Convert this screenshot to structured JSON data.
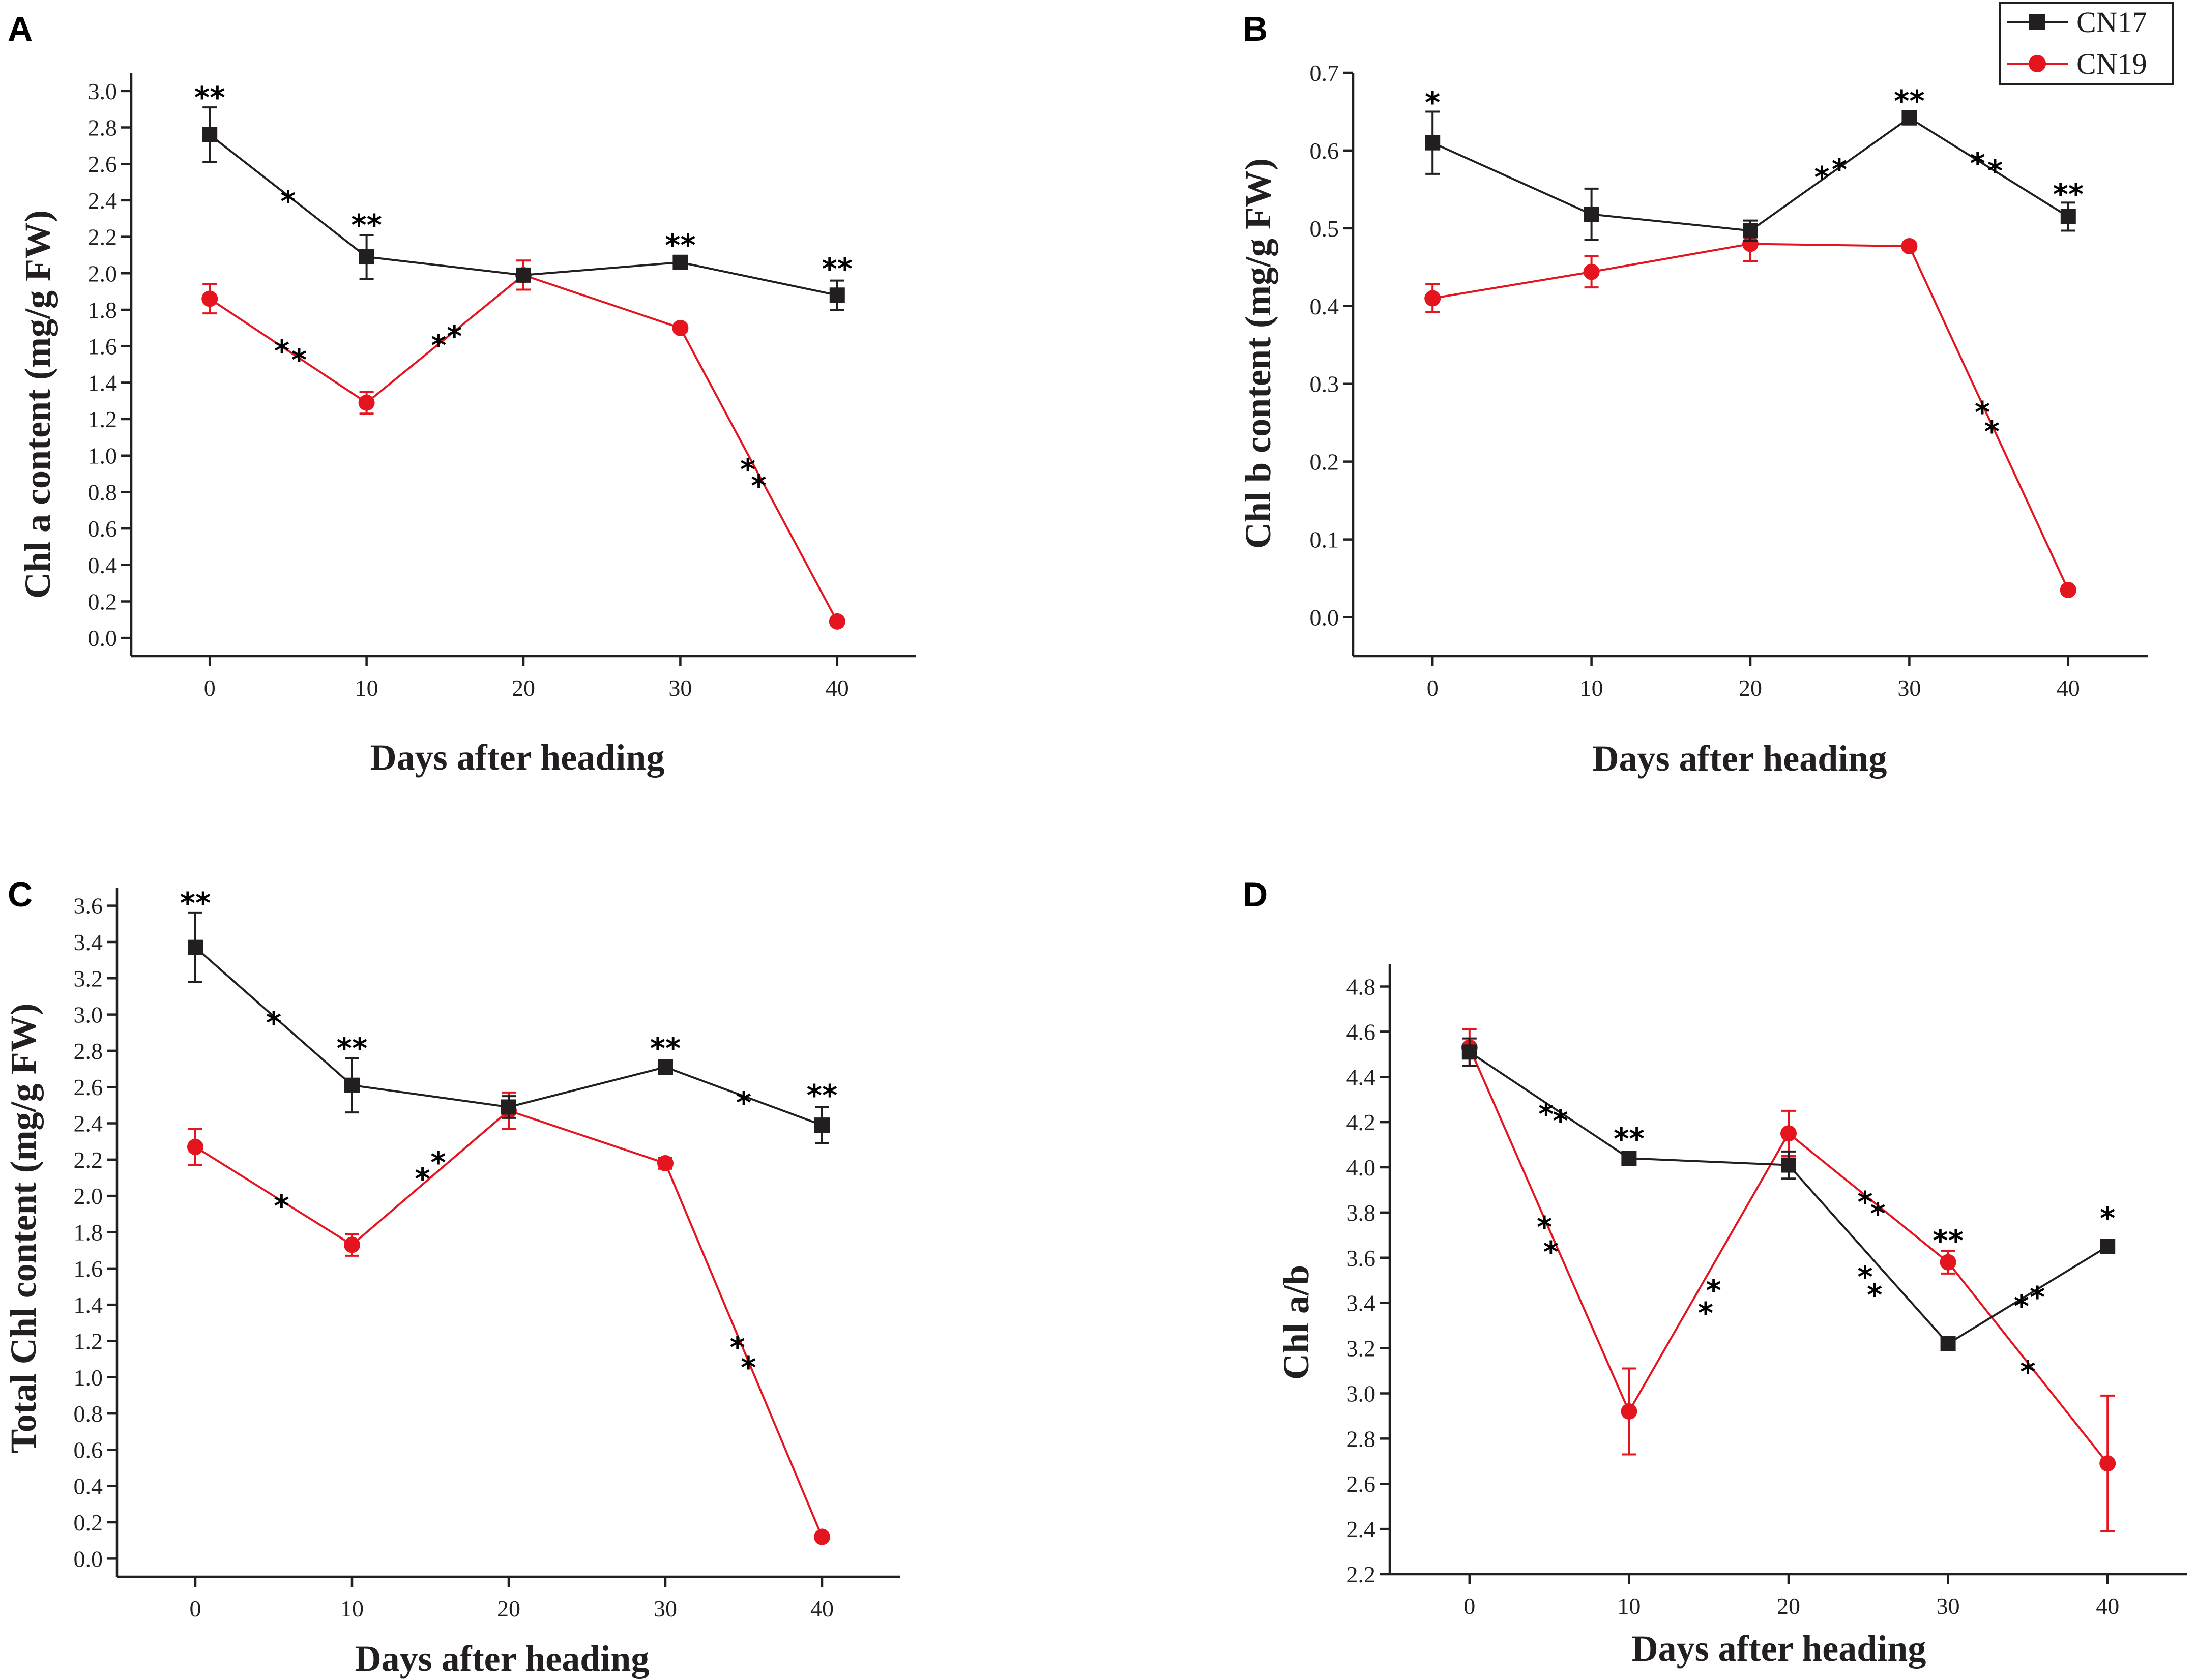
{
  "colors": {
    "CN17": "#231f20",
    "CN19": "#e4151f",
    "axis": "#231f20"
  },
  "legend": {
    "entries": [
      "CN17",
      "CN19"
    ]
  },
  "chart_data": [
    {
      "panel": "A",
      "type": "line",
      "xlabel": "Days after heading",
      "ylabel": "Chl a content (mg/g FW)",
      "xlim": [
        -5,
        45
      ],
      "ylim": [
        -0.1,
        3.1
      ],
      "xticks": [
        0,
        10,
        20,
        30,
        40
      ],
      "xtick_labels": [
        "0",
        "10",
        "20",
        "30",
        "40"
      ],
      "yticks": [
        0,
        0.2,
        0.4,
        0.6,
        0.8,
        1.0,
        1.2,
        1.4,
        1.6,
        1.8,
        2.0,
        2.2,
        2.4,
        2.6,
        2.8,
        3.0
      ],
      "ytick_labels": [
        "0.0",
        "0.2",
        "0.4",
        "0.6",
        "0.8",
        "1.0",
        "1.2",
        "1.4",
        "1.6",
        "1.8",
        "2.0",
        "2.2",
        "2.4",
        "2.6",
        "2.8",
        "3.0"
      ],
      "x": [
        0,
        10,
        20,
        30,
        40
      ],
      "series": [
        {
          "name": "CN17",
          "values": [
            2.76,
            2.09,
            1.99,
            2.06,
            1.88
          ],
          "errors": [
            0.15,
            0.12,
            0.02,
            0.02,
            0.08
          ]
        },
        {
          "name": "CN19",
          "values": [
            1.86,
            1.29,
            1.99,
            1.7,
            0.09
          ],
          "errors": [
            0.08,
            0.06,
            0.08,
            0.02,
            0.02
          ]
        }
      ],
      "annotations": [
        {
          "text": "**",
          "x": 0,
          "y": 2.97
        },
        {
          "text": "*",
          "x": 5,
          "y": 2.4
        },
        {
          "text": "**",
          "x": 10,
          "y": 2.27
        },
        {
          "text": "**",
          "x": 30,
          "y": 2.16
        },
        {
          "text": "**",
          "x": 40,
          "y": 2.03
        },
        {
          "text": "*",
          "x": 4.6,
          "y": 1.58
        },
        {
          "text": "*",
          "x": 5.7,
          "y": 1.53
        },
        {
          "text": "*",
          "x": 14.6,
          "y": 1.61
        },
        {
          "text": "*",
          "x": 15.6,
          "y": 1.66
        },
        {
          "text": "*",
          "x": 34.3,
          "y": 0.93
        },
        {
          "text": "*",
          "x": 35.0,
          "y": 0.84
        }
      ]
    },
    {
      "panel": "B",
      "type": "line",
      "xlabel": "Days after heading",
      "ylabel": "Chl b content (mg/g FW)",
      "xlim": [
        -5,
        45
      ],
      "ylim": [
        -0.05,
        0.7
      ],
      "xticks": [
        0,
        10,
        20,
        30,
        40
      ],
      "xtick_labels": [
        "0",
        "10",
        "20",
        "30",
        "40"
      ],
      "yticks": [
        0,
        0.1,
        0.2,
        0.3,
        0.4,
        0.5,
        0.6,
        0.7
      ],
      "ytick_labels": [
        "0.0",
        "0.1",
        "0.2",
        "0.3",
        "0.4",
        "0.5",
        "0.6",
        "0.7"
      ],
      "x": [
        0,
        10,
        20,
        30,
        40
      ],
      "series": [
        {
          "name": "CN17",
          "values": [
            0.61,
            0.518,
            0.497,
            0.642,
            0.515
          ],
          "errors": [
            0.04,
            0.033,
            0.013,
            0.005,
            0.018
          ]
        },
        {
          "name": "CN19",
          "values": [
            0.41,
            0.444,
            0.48,
            0.477,
            0.035
          ],
          "errors": [
            0.018,
            0.02,
            0.022,
            0.005,
            0.005
          ]
        }
      ],
      "annotations": [
        {
          "text": "*",
          "x": 0,
          "y": 0.663
        },
        {
          "text": "**",
          "x": 30,
          "y": 0.665
        },
        {
          "text": "**",
          "x": 40,
          "y": 0.545
        },
        {
          "text": "*",
          "x": 24.5,
          "y": 0.567
        },
        {
          "text": "*",
          "x": 25.6,
          "y": 0.577
        },
        {
          "text": "*",
          "x": 34.3,
          "y": 0.585
        },
        {
          "text": "*",
          "x": 35.4,
          "y": 0.575
        },
        {
          "text": "*",
          "x": 34.6,
          "y": 0.265
        },
        {
          "text": "*",
          "x": 35.2,
          "y": 0.24
        }
      ]
    },
    {
      "panel": "C",
      "type": "line",
      "xlabel": "Days after heading",
      "ylabel": "Total Chl content (mg/g FW)",
      "xlim": [
        -5,
        45
      ],
      "ylim": [
        -0.1,
        3.7
      ],
      "xticks": [
        0,
        10,
        20,
        30,
        40
      ],
      "xtick_labels": [
        "0",
        "10",
        "20",
        "30",
        "40"
      ],
      "yticks": [
        0,
        0.2,
        0.4,
        0.6,
        0.8,
        1.0,
        1.2,
        1.4,
        1.6,
        1.8,
        2.0,
        2.2,
        2.4,
        2.6,
        2.8,
        3.0,
        3.2,
        3.4,
        3.6
      ],
      "ytick_labels": [
        "0.0",
        "0.2",
        "0.4",
        "0.6",
        "0.8",
        "1.0",
        "1.2",
        "1.4",
        "1.6",
        "1.8",
        "2.0",
        "2.2",
        "2.4",
        "2.6",
        "2.8",
        "3.0",
        "3.2",
        "3.4",
        "3.6"
      ],
      "x": [
        0,
        10,
        20,
        30,
        40
      ],
      "series": [
        {
          "name": "CN17",
          "values": [
            3.37,
            2.61,
            2.49,
            2.71,
            2.39
          ],
          "errors": [
            0.19,
            0.15,
            0.06,
            0.03,
            0.1
          ]
        },
        {
          "name": "CN19",
          "values": [
            2.27,
            1.73,
            2.47,
            2.18,
            0.12
          ],
          "errors": [
            0.1,
            0.06,
            0.1,
            0.03,
            0.02
          ]
        }
      ],
      "annotations": [
        {
          "text": "**",
          "x": 0,
          "y": 3.62
        },
        {
          "text": "*",
          "x": 5,
          "y": 2.96
        },
        {
          "text": "**",
          "x": 10,
          "y": 2.82
        },
        {
          "text": "**",
          "x": 30,
          "y": 2.82
        },
        {
          "text": "*",
          "x": 35,
          "y": 2.52
        },
        {
          "text": "**",
          "x": 40,
          "y": 2.56
        },
        {
          "text": "*",
          "x": 5.5,
          "y": 1.95
        },
        {
          "text": "*",
          "x": 14.5,
          "y": 2.1
        },
        {
          "text": "*",
          "x": 15.5,
          "y": 2.19
        },
        {
          "text": "*",
          "x": 34.6,
          "y": 1.17
        },
        {
          "text": "*",
          "x": 35.3,
          "y": 1.06
        }
      ]
    },
    {
      "panel": "D",
      "type": "line",
      "xlabel": "Days after heading",
      "ylabel": "Chl a/b",
      "xlim": [
        -5,
        45
      ],
      "ylim": [
        2.2,
        4.9
      ],
      "xticks": [
        0,
        10,
        20,
        30,
        40
      ],
      "xtick_labels": [
        "0",
        "10",
        "20",
        "30",
        "40"
      ],
      "yticks": [
        2.2,
        2.4,
        2.6,
        2.8,
        3.0,
        3.2,
        3.4,
        3.6,
        3.8,
        4.0,
        4.2,
        4.4,
        4.6,
        4.8
      ],
      "ytick_labels": [
        "2.2",
        "2.4",
        "2.6",
        "2.8",
        "3.0",
        "3.2",
        "3.4",
        "3.6",
        "3.8",
        "4.0",
        "4.2",
        "4.4",
        "4.6",
        "4.8"
      ],
      "x": [
        0,
        10,
        20,
        30,
        40
      ],
      "series": [
        {
          "name": "CN17",
          "values": [
            4.51,
            4.04,
            4.01,
            3.22,
            3.65
          ],
          "errors": [
            0.06,
            0.02,
            0.06,
            0.01,
            0.02
          ]
        },
        {
          "name": "CN19",
          "values": [
            4.53,
            2.92,
            4.15,
            3.58,
            2.69
          ],
          "errors": [
            0.08,
            0.19,
            0.1,
            0.05,
            0.3
          ]
        }
      ],
      "annotations": [
        {
          "text": "**",
          "x": 10,
          "y": 4.13
        },
        {
          "text": "*",
          "x": 40,
          "y": 3.78
        },
        {
          "text": "**",
          "x": 30,
          "y": 3.68
        },
        {
          "text": "*",
          "x": 4.8,
          "y": 4.24
        },
        {
          "text": "*",
          "x": 5.7,
          "y": 4.21
        },
        {
          "text": "*",
          "x": 4.7,
          "y": 3.74
        },
        {
          "text": "*",
          "x": 5.1,
          "y": 3.63
        },
        {
          "text": "*",
          "x": 14.8,
          "y": 3.36
        },
        {
          "text": "*",
          "x": 15.3,
          "y": 3.46
        },
        {
          "text": "*",
          "x": 24.8,
          "y": 3.85
        },
        {
          "text": "*",
          "x": 25.6,
          "y": 3.8
        },
        {
          "text": "*",
          "x": 24.8,
          "y": 3.52
        },
        {
          "text": "*",
          "x": 25.4,
          "y": 3.44
        },
        {
          "text": "*",
          "x": 34.6,
          "y": 3.39
        },
        {
          "text": "*",
          "x": 35.6,
          "y": 3.43
        },
        {
          "text": "*",
          "x": 35,
          "y": 3.1
        }
      ]
    }
  ]
}
